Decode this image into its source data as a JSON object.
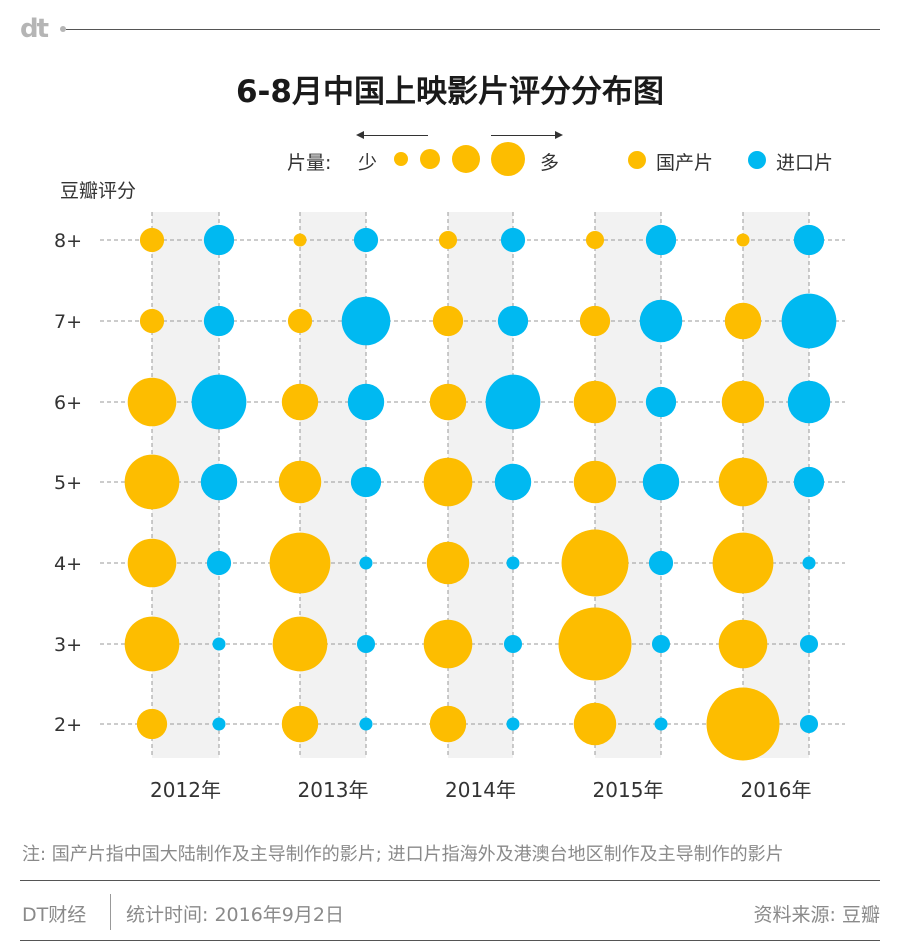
{
  "brand": {
    "logo": "dt"
  },
  "footer": {
    "note": "注: 国产片指中国大陆制作及主导制作的影片; 进口片指海外及港澳台地区制作及主导制作的影片",
    "brand": "DT财经",
    "stat_time": "统计时间: 2016年9月2日",
    "source": "资料来源: 豆瓣"
  },
  "colors": {
    "domestic": "#FDBD00",
    "imported": "#00B9F1",
    "band": "#F2F2F2",
    "grid": "#9a9a9a"
  },
  "legend": {
    "volume_label": "片量:",
    "less": "少",
    "more": "多",
    "domestic": "国产片",
    "imported": "进口片"
  },
  "chart_data": {
    "type": "scatter",
    "title": "6-8月中国上映影片评分分布图",
    "ylabel": "豆瓣评分",
    "x_categories": [
      "2012年",
      "2013年",
      "2014年",
      "2015年",
      "2016年"
    ],
    "y_categories": [
      "8+",
      "7+",
      "6+",
      "5+",
      "4+",
      "3+",
      "2+"
    ],
    "size_encoding": "片量 (relative film count)",
    "series": [
      {
        "name": "国产片",
        "values": [
          [
            2,
            2,
            6,
            7,
            6,
            7,
            3
          ],
          [
            0,
            2,
            4,
            5,
            8,
            7,
            4
          ],
          [
            1,
            3,
            4,
            6,
            5,
            6,
            4
          ],
          [
            1,
            3,
            5,
            5,
            9,
            10,
            5
          ],
          [
            0,
            4,
            5,
            6,
            8,
            6,
            10
          ]
        ]
      },
      {
        "name": "进口片",
        "values": [
          [
            3,
            3,
            7,
            4,
            2,
            0,
            0
          ],
          [
            2,
            6,
            4,
            3,
            0,
            1,
            0
          ],
          [
            2,
            3,
            7,
            4,
            0,
            1,
            0
          ],
          [
            3,
            5,
            3,
            4,
            2,
            1,
            0
          ],
          [
            3,
            7,
            5,
            3,
            0,
            1,
            1
          ]
        ]
      }
    ]
  }
}
